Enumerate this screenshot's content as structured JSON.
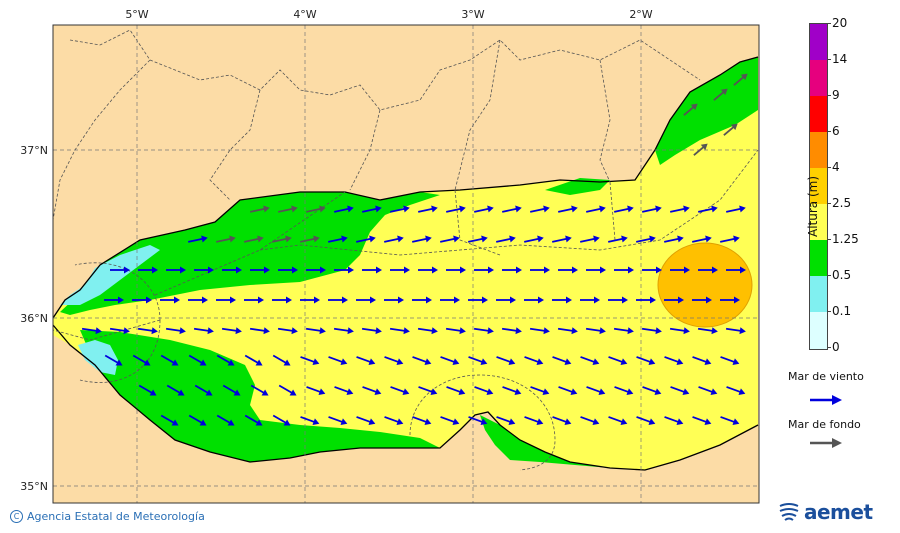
{
  "map": {
    "lon_labels": [
      "5°W",
      "4°W",
      "3°W",
      "2°W"
    ],
    "lat_labels": [
      "37°N",
      "36°N",
      "35°N"
    ]
  },
  "legend": {
    "title": "Altura (m)",
    "levels": [
      "20",
      "14",
      "9",
      "6",
      "4",
      "2.5",
      "1.25",
      "0.5",
      "0.1",
      "0"
    ],
    "colors": [
      "#a000c8",
      "#e6007e",
      "#ff0000",
      "#ff8c00",
      "#ffd000",
      "#ffff55",
      "#00e000",
      "#80f0f0",
      "#ddffff"
    ],
    "wind_sea_label": "Mar de viento",
    "swell_label": "Mar de fondo",
    "wind_sea_color": "#0000dd",
    "swell_color": "#555555"
  },
  "footer": {
    "credit": "Agencia Estatal de Meteorología",
    "logo_text": "aemet"
  },
  "colors": {
    "land": "#fcdca6",
    "sea_yellow": "#ffff55",
    "sea_green": "#00e000",
    "sea_cyan": "#80f0f0",
    "sea_orange": "#ffc000"
  }
}
